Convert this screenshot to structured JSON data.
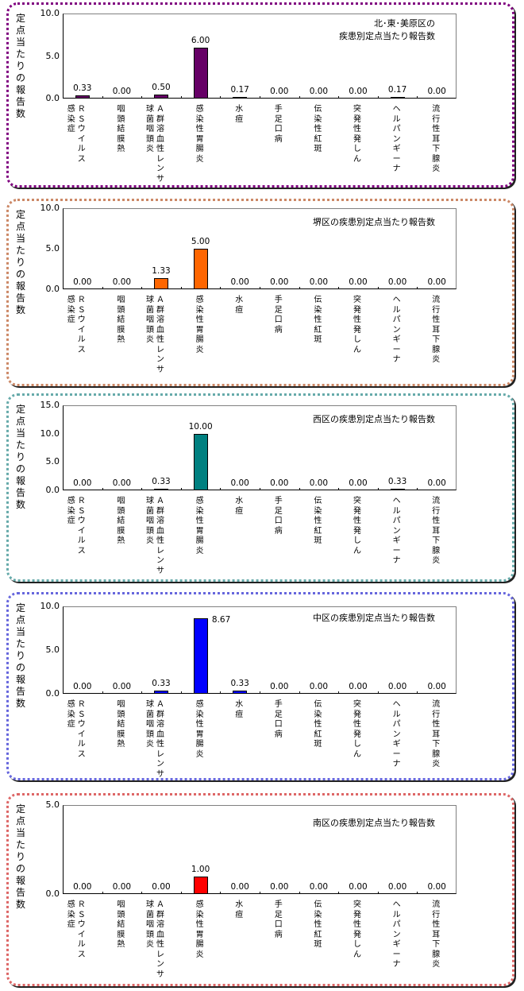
{
  "ylabel": [
    "定",
    "点",
    "当",
    "た",
    "り",
    "の",
    "報",
    "告",
    "数"
  ],
  "categories": [
    {
      "cols": [
        "ＲＳウイルス",
        "感染症"
      ]
    },
    {
      "cols": [
        "咽頭結膜熱"
      ]
    },
    {
      "cols": [
        "Ａ群溶血性レンサ",
        "球菌咽頭炎"
      ]
    },
    {
      "cols": [
        "感染性胃腸炎"
      ]
    },
    {
      "cols": [
        "水痘"
      ]
    },
    {
      "cols": [
        "手足口病"
      ]
    },
    {
      "cols": [
        "伝染性紅斑"
      ]
    },
    {
      "cols": [
        "突発性発しん"
      ]
    },
    {
      "cols": [
        "ヘルパンギーナ"
      ]
    },
    {
      "cols": [
        "流行性耳下腺炎"
      ]
    }
  ],
  "chart_data": [
    {
      "type": "bar",
      "title": "北･東･美原区の\n疾患別定点当たり報告数",
      "ylabel": "定点当たりの報告数",
      "categories": [
        "RSウイルス感染症",
        "咽頭結膜熱",
        "A群溶血性レンサ球菌咽頭炎",
        "感染性胃腸炎",
        "水痘",
        "手足口病",
        "伝染性紅斑",
        "突発性発しん",
        "ヘルパンギーナ",
        "流行性耳下腺炎"
      ],
      "values": [
        0.33,
        0.0,
        0.5,
        6.0,
        0.17,
        0.0,
        0.0,
        0.0,
        0.17,
        0.0
      ],
      "labels": [
        "0.33",
        "0.00",
        "0.50",
        "6.00",
        "0.17",
        "0.00",
        "0.00",
        "0.00",
        "0.17",
        "0.00"
      ],
      "ylim": [
        0,
        10
      ],
      "yticks": [
        "10.0",
        "5.0",
        "0.0"
      ],
      "bar_color": "#660066",
      "border_color": "#800080"
    },
    {
      "type": "bar",
      "title": "堺区の疾患別定点当たり報告数",
      "ylabel": "定点当たりの報告数",
      "categories": [
        "RSウイルス感染症",
        "咽頭結膜熱",
        "A群溶血性レンサ球菌咽頭炎",
        "感染性胃腸炎",
        "水痘",
        "手足口病",
        "伝染性紅斑",
        "突発性発しん",
        "ヘルパンギーナ",
        "流行性耳下腺炎"
      ],
      "values": [
        0.0,
        0.0,
        1.33,
        5.0,
        0.0,
        0.0,
        0.0,
        0.0,
        0.0,
        0.0
      ],
      "labels": [
        "0.00",
        "0.00",
        "1.33",
        "5.00",
        "0.00",
        "0.00",
        "0.00",
        "0.00",
        "0.00",
        "0.00"
      ],
      "ylim": [
        0,
        10
      ],
      "yticks": [
        "10.0",
        "5.0",
        "0.0"
      ],
      "bar_color": "#ff6600",
      "border_color": "#cc8866"
    },
    {
      "type": "bar",
      "title": "西区の疾患別定点当たり報告数",
      "ylabel": "定点当たりの報告数",
      "categories": [
        "RSウイルス感染症",
        "咽頭結膜熱",
        "A群溶血性レンサ球菌咽頭炎",
        "感染性胃腸炎",
        "水痘",
        "手足口病",
        "伝染性紅斑",
        "突発性発しん",
        "ヘルパンギーナ",
        "流行性耳下腺炎"
      ],
      "values": [
        0.0,
        0.0,
        0.33,
        10.0,
        0.0,
        0.0,
        0.0,
        0.0,
        0.33,
        0.0
      ],
      "labels": [
        "0.00",
        "0.00",
        "0.33",
        "10.00",
        "0.00",
        "0.00",
        "0.00",
        "0.00",
        "0.33",
        "0.00"
      ],
      "ylim": [
        0,
        15
      ],
      "yticks": [
        "15.0",
        "10.0",
        "5.0",
        "0.0"
      ],
      "bar_color": "#008080",
      "border_color": "#66aaaa"
    },
    {
      "type": "bar",
      "title": "中区の疾患別定点当たり報告数",
      "ylabel": "定点当たりの報告数",
      "categories": [
        "RSウイルス感染症",
        "咽頭結膜熱",
        "A群溶血性レンサ球菌咽頭炎",
        "感染性胃腸炎",
        "水痘",
        "手足口病",
        "伝染性紅斑",
        "突発性発しん",
        "ヘルパンギーナ",
        "流行性耳下腺炎"
      ],
      "values": [
        0.0,
        0.0,
        0.33,
        8.67,
        0.33,
        0.0,
        0.0,
        0.0,
        0.0,
        0.0
      ],
      "labels": [
        "0.00",
        "0.00",
        "0.33",
        "8.67",
        "0.33",
        "0.00",
        "0.00",
        "0.00",
        "0.00",
        "0.00"
      ],
      "ylim": [
        0,
        10
      ],
      "yticks": [
        "10.0",
        "5.0",
        "0.0"
      ],
      "bar_color": "#0000ff",
      "border_color": "#6666dd"
    },
    {
      "type": "bar",
      "title": "南区の疾患別定点当たり報告数",
      "ylabel": "定点当たりの報告数",
      "categories": [
        "RSウイルス感染症",
        "咽頭結膜熱",
        "A群溶血性レンサ球菌咽頭炎",
        "感染性胃腸炎",
        "水痘",
        "手足口病",
        "伝染性紅斑",
        "突発性発しん",
        "ヘルパンギーナ",
        "流行性耳下腺炎"
      ],
      "values": [
        0.0,
        0.0,
        0.0,
        1.0,
        0.0,
        0.0,
        0.0,
        0.0,
        0.0,
        0.0
      ],
      "labels": [
        "0.00",
        "0.00",
        "0.00",
        "1.00",
        "0.00",
        "0.00",
        "0.00",
        "0.00",
        "0.00",
        "0.00"
      ],
      "ylim": [
        0,
        5
      ],
      "yticks": [
        "5.0",
        "0.0"
      ],
      "bar_color": "#ff0000",
      "border_color": "#dd6666"
    }
  ]
}
